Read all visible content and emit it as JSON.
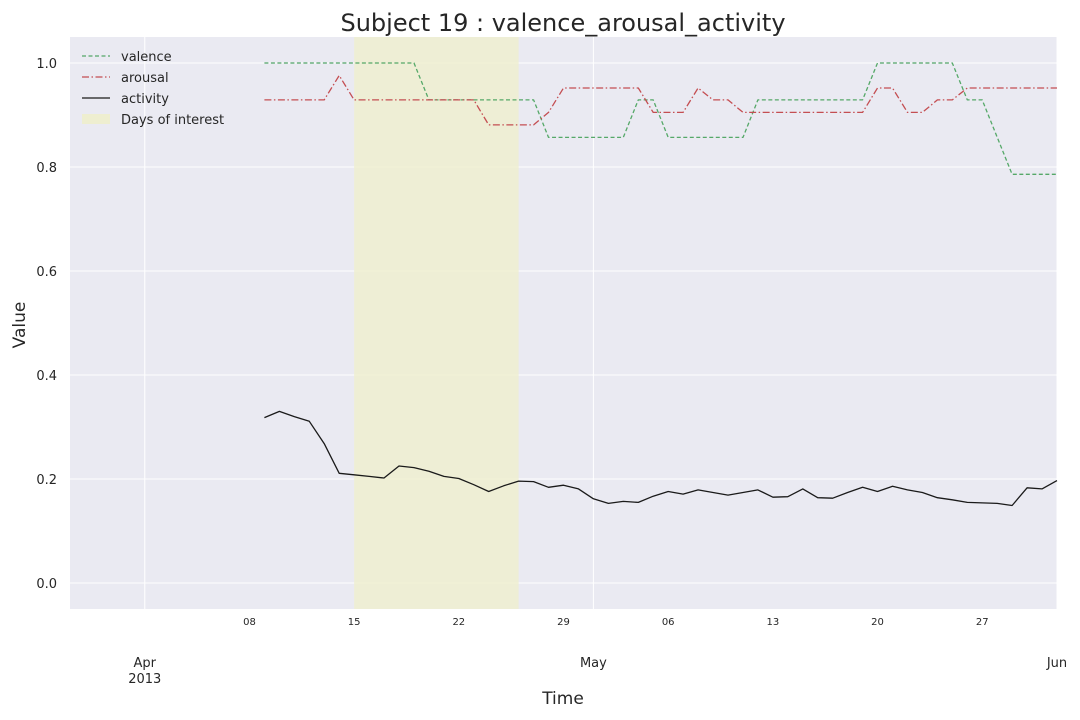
{
  "chart_data": {
    "type": "line",
    "title": "Subject 19 : valence_arousal_activity",
    "xlabel": "Time",
    "ylabel": "Value",
    "x_axis_type": "date",
    "xlim": [
      "2013-03-27",
      "2013-06-01"
    ],
    "ylim": [
      -0.05,
      1.05
    ],
    "yticks": [
      0.0,
      0.2,
      0.4,
      0.6,
      0.8,
      1.0
    ],
    "ytick_labels": [
      "0.0",
      "0.2",
      "0.4",
      "0.6",
      "0.8",
      "1.0"
    ],
    "minor_ticks": [
      {
        "date": "2013-04-08",
        "label": "08"
      },
      {
        "date": "2013-04-15",
        "label": "15"
      },
      {
        "date": "2013-04-22",
        "label": "22"
      },
      {
        "date": "2013-04-29",
        "label": "29"
      },
      {
        "date": "2013-05-06",
        "label": "06"
      },
      {
        "date": "2013-05-13",
        "label": "13"
      },
      {
        "date": "2013-05-20",
        "label": "20"
      },
      {
        "date": "2013-05-27",
        "label": "27"
      }
    ],
    "major_ticks": [
      {
        "date": "2013-04-01",
        "label": "Apr",
        "sublabel": "2013"
      },
      {
        "date": "2013-05-01",
        "label": "May",
        "sublabel": ""
      },
      {
        "date": "2013-06-01",
        "label": "Jun",
        "sublabel": ""
      }
    ],
    "grid": true,
    "legend_position": "top-left",
    "highlight": {
      "label": "Days of interest",
      "start": "2013-04-15",
      "end": "2013-04-26",
      "color": "#eeeed0"
    },
    "series": [
      {
        "name": "valence",
        "color": "#55a868",
        "style": "dashed",
        "points": [
          [
            "2013-04-09",
            1.0
          ],
          [
            "2013-04-19",
            1.0
          ],
          [
            "2013-04-20",
            0.929
          ],
          [
            "2013-04-27",
            0.929
          ],
          [
            "2013-04-28",
            0.857
          ],
          [
            "2013-05-03",
            0.857
          ],
          [
            "2013-05-04",
            0.929
          ],
          [
            "2013-05-05",
            0.929
          ],
          [
            "2013-05-06",
            0.857
          ],
          [
            "2013-05-11",
            0.857
          ],
          [
            "2013-05-12",
            0.929
          ],
          [
            "2013-05-19",
            0.929
          ],
          [
            "2013-05-20",
            1.0
          ],
          [
            "2013-05-25",
            1.0
          ],
          [
            "2013-05-26",
            0.929
          ],
          [
            "2013-05-27",
            0.929
          ],
          [
            "2013-05-29",
            0.786
          ],
          [
            "2013-06-01",
            0.786
          ]
        ]
      },
      {
        "name": "arousal",
        "color": "#c44e52",
        "style": "dashdot",
        "points": [
          [
            "2013-04-09",
            0.929
          ],
          [
            "2013-04-13",
            0.929
          ],
          [
            "2013-04-14",
            0.976
          ],
          [
            "2013-04-15",
            0.929
          ],
          [
            "2013-04-23",
            0.929
          ],
          [
            "2013-04-24",
            0.881
          ],
          [
            "2013-04-27",
            0.881
          ],
          [
            "2013-04-28",
            0.905
          ],
          [
            "2013-04-29",
            0.952
          ],
          [
            "2013-05-04",
            0.952
          ],
          [
            "2013-05-05",
            0.905
          ],
          [
            "2013-05-07",
            0.905
          ],
          [
            "2013-05-08",
            0.952
          ],
          [
            "2013-05-09",
            0.929
          ],
          [
            "2013-05-10",
            0.929
          ],
          [
            "2013-05-11",
            0.905
          ],
          [
            "2013-05-19",
            0.905
          ],
          [
            "2013-05-20",
            0.952
          ],
          [
            "2013-05-21",
            0.952
          ],
          [
            "2013-05-22",
            0.905
          ],
          [
            "2013-05-23",
            0.905
          ],
          [
            "2013-05-24",
            0.929
          ],
          [
            "2013-05-25",
            0.929
          ],
          [
            "2013-05-26",
            0.952
          ],
          [
            "2013-06-01",
            0.952
          ]
        ]
      },
      {
        "name": "activity",
        "color": "#1a1a1a",
        "style": "solid",
        "points": [
          [
            "2013-04-09",
            0.318
          ],
          [
            "2013-04-10",
            0.33
          ],
          [
            "2013-04-11",
            0.32
          ],
          [
            "2013-04-12",
            0.311
          ],
          [
            "2013-04-13",
            0.268
          ],
          [
            "2013-04-14",
            0.211
          ],
          [
            "2013-04-15",
            0.208
          ],
          [
            "2013-04-16",
            0.205
          ],
          [
            "2013-04-17",
            0.202
          ],
          [
            "2013-04-18",
            0.225
          ],
          [
            "2013-04-19",
            0.222
          ],
          [
            "2013-04-20",
            0.215
          ],
          [
            "2013-04-21",
            0.205
          ],
          [
            "2013-04-22",
            0.201
          ],
          [
            "2013-04-23",
            0.189
          ],
          [
            "2013-04-24",
            0.176
          ],
          [
            "2013-04-25",
            0.187
          ],
          [
            "2013-04-26",
            0.196
          ],
          [
            "2013-04-27",
            0.195
          ],
          [
            "2013-04-28",
            0.184
          ],
          [
            "2013-04-29",
            0.188
          ],
          [
            "2013-04-30",
            0.181
          ],
          [
            "2013-05-01",
            0.162
          ],
          [
            "2013-05-02",
            0.153
          ],
          [
            "2013-05-03",
            0.157
          ],
          [
            "2013-05-04",
            0.155
          ],
          [
            "2013-05-05",
            0.167
          ],
          [
            "2013-05-06",
            0.176
          ],
          [
            "2013-05-07",
            0.171
          ],
          [
            "2013-05-08",
            0.179
          ],
          [
            "2013-05-09",
            0.174
          ],
          [
            "2013-05-10",
            0.169
          ],
          [
            "2013-05-11",
            0.174
          ],
          [
            "2013-05-12",
            0.179
          ],
          [
            "2013-05-13",
            0.165
          ],
          [
            "2013-05-14",
            0.166
          ],
          [
            "2013-05-15",
            0.181
          ],
          [
            "2013-05-16",
            0.164
          ],
          [
            "2013-05-17",
            0.163
          ],
          [
            "2013-05-18",
            0.174
          ],
          [
            "2013-05-19",
            0.184
          ],
          [
            "2013-05-20",
            0.176
          ],
          [
            "2013-05-21",
            0.186
          ],
          [
            "2013-05-22",
            0.179
          ],
          [
            "2013-05-23",
            0.174
          ],
          [
            "2013-05-24",
            0.164
          ],
          [
            "2013-05-25",
            0.16
          ],
          [
            "2013-05-26",
            0.155
          ],
          [
            "2013-05-27",
            0.154
          ],
          [
            "2013-05-28",
            0.153
          ],
          [
            "2013-05-29",
            0.149
          ],
          [
            "2013-05-30",
            0.183
          ],
          [
            "2013-05-31",
            0.181
          ],
          [
            "2013-06-01",
            0.197
          ]
        ]
      }
    ]
  }
}
